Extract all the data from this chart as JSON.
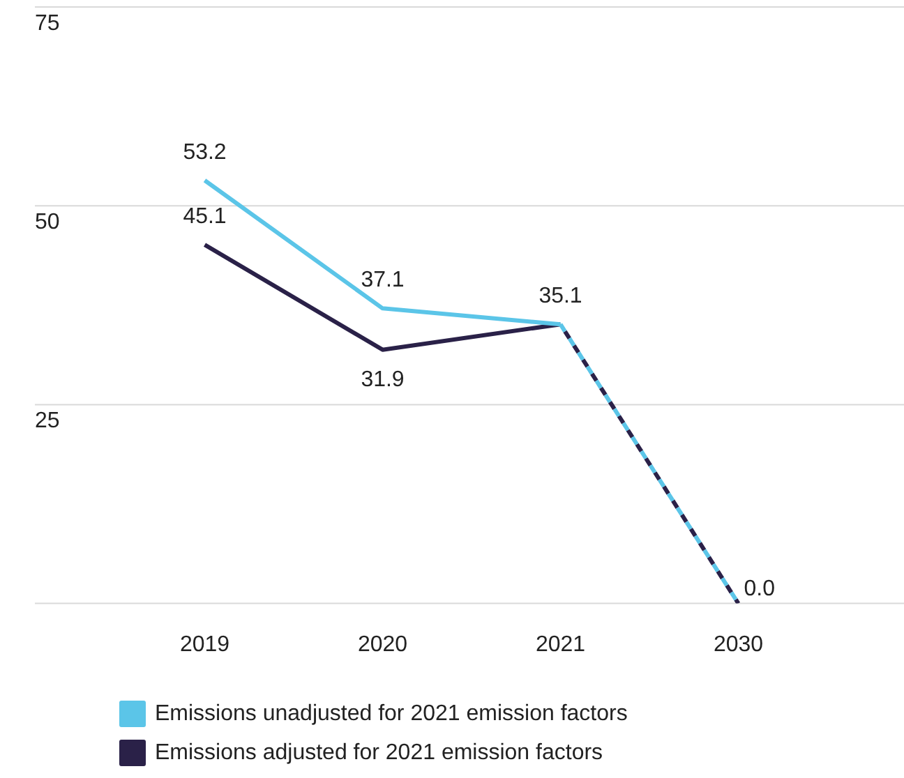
{
  "chart_data": {
    "type": "line",
    "categories": [
      "2019",
      "2020",
      "2021",
      "2030"
    ],
    "series": [
      {
        "name": "Emissions unadjusted for 2021 emission factors",
        "color": "#5bc5e8",
        "values": [
          53.2,
          37.1,
          35.1,
          null
        ],
        "value_labels": [
          "53.2",
          "37.1",
          "35.1",
          null
        ]
      },
      {
        "color": "#5bc5e8",
        "values": [
          null,
          null,
          35.1,
          0.0
        ],
        "line_style": "dashed",
        "value_labels": [
          null,
          null,
          null,
          "0.0"
        ]
      },
      {
        "name": "Emissions adjusted for 2021 emission factors",
        "color": "#2a2148",
        "values": [
          45.1,
          31.9,
          35.1,
          null
        ],
        "value_labels": [
          "45.1",
          "31.9",
          null,
          null
        ]
      },
      {
        "color": "#2a2148",
        "values": [
          null,
          null,
          35.1,
          0.0
        ],
        "line_style": "dashed"
      }
    ],
    "ylim": [
      0,
      75
    ],
    "yticks": [
      {
        "value": 0,
        "label": null
      },
      25,
      50,
      75
    ],
    "grid": "y",
    "legend": "bottom",
    "marker": "none",
    "line_style": "solid"
  }
}
